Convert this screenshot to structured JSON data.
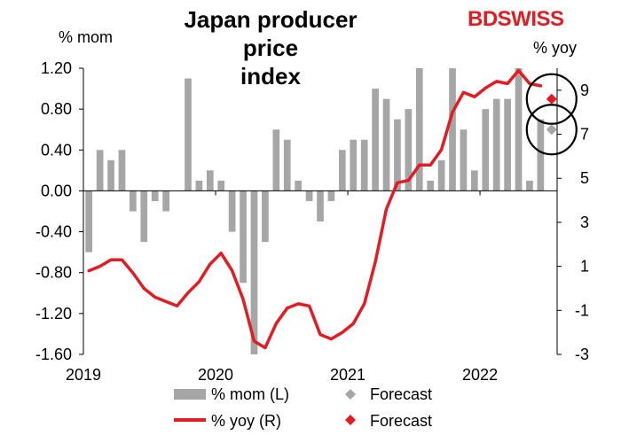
{
  "logo": {
    "text": "BDSWISS"
  },
  "chart_data": {
    "type": "bar",
    "title": "Japan producer price index",
    "title_line1": "Japan producer price",
    "title_line2": "index",
    "left_axis": {
      "label": "% mom",
      "ylim": [
        -1.6,
        1.2
      ],
      "ticks": [
        "1.20",
        "0.80",
        "0.40",
        "0.00",
        "-0.40",
        "-0.80",
        "-1.20",
        "-1.60"
      ]
    },
    "right_axis": {
      "label": "% yoy",
      "ylim": [
        -3,
        10
      ],
      "ticks": [
        "9",
        "7",
        "5",
        "3",
        "1",
        "-1",
        "-3"
      ]
    },
    "x_ticks": [
      "2019",
      "2020",
      "2021",
      "2022"
    ],
    "x_range": [
      "2019-01",
      "2022-08"
    ],
    "series": [
      {
        "name": "% mom (L)",
        "type": "bar",
        "axis": "left",
        "color": "#a6a6a6",
        "x": [
          "2019-01",
          "2019-02",
          "2019-03",
          "2019-04",
          "2019-05",
          "2019-06",
          "2019-07",
          "2019-08",
          "2019-09",
          "2019-10",
          "2019-11",
          "2019-12",
          "2020-01",
          "2020-02",
          "2020-03",
          "2020-04",
          "2020-05",
          "2020-06",
          "2020-07",
          "2020-08",
          "2020-09",
          "2020-10",
          "2020-11",
          "2020-12",
          "2021-01",
          "2021-02",
          "2021-03",
          "2021-04",
          "2021-05",
          "2021-06",
          "2021-07",
          "2021-08",
          "2021-09",
          "2021-10",
          "2021-11",
          "2021-12",
          "2022-01",
          "2022-02",
          "2022-03",
          "2022-04",
          "2022-05",
          "2022-06"
        ],
        "values": [
          -0.6,
          0.4,
          0.3,
          0.4,
          -0.2,
          -0.5,
          -0.1,
          -0.2,
          0.0,
          1.1,
          0.1,
          0.2,
          0.1,
          -0.4,
          -0.9,
          -1.6,
          -0.5,
          0.6,
          0.5,
          0.1,
          -0.1,
          -0.3,
          -0.1,
          0.4,
          0.5,
          0.5,
          1.0,
          0.9,
          0.7,
          0.8,
          1.2,
          0.1,
          0.3,
          1.2,
          0.6,
          0.2,
          0.8,
          0.9,
          0.9,
          1.2,
          0.1,
          0.7
        ]
      },
      {
        "name": "% yoy (R)",
        "type": "line",
        "axis": "right",
        "color": "#e31b23",
        "x": [
          "2019-01",
          "2019-02",
          "2019-03",
          "2019-04",
          "2019-05",
          "2019-06",
          "2019-07",
          "2019-08",
          "2019-09",
          "2019-10",
          "2019-11",
          "2019-12",
          "2020-01",
          "2020-02",
          "2020-03",
          "2020-04",
          "2020-05",
          "2020-06",
          "2020-07",
          "2020-08",
          "2020-09",
          "2020-10",
          "2020-11",
          "2020-12",
          "2021-01",
          "2021-02",
          "2021-03",
          "2021-04",
          "2021-05",
          "2021-06",
          "2021-07",
          "2021-08",
          "2021-09",
          "2021-10",
          "2021-11",
          "2021-12",
          "2022-01",
          "2022-02",
          "2022-03",
          "2022-04",
          "2022-05",
          "2022-06"
        ],
        "values": [
          0.8,
          1.0,
          1.3,
          1.3,
          0.7,
          0.0,
          -0.4,
          -0.6,
          -0.8,
          -0.2,
          0.3,
          1.1,
          1.6,
          0.8,
          -0.5,
          -2.4,
          -2.7,
          -1.6,
          -0.9,
          -0.7,
          -0.8,
          -2.1,
          -2.3,
          -2.0,
          -1.6,
          -0.7,
          1.2,
          3.6,
          4.8,
          4.9,
          5.6,
          5.6,
          6.3,
          8.0,
          8.9,
          8.7,
          9.1,
          9.4,
          9.3,
          9.9,
          9.3,
          9.2
        ]
      },
      {
        "name": "Forecast",
        "type": "marker",
        "axis": "left",
        "color": "#a6a6a6",
        "x": [
          "2022-07"
        ],
        "values": [
          0.6
        ]
      },
      {
        "name": "Forecast",
        "type": "marker",
        "axis": "right",
        "color": "#e31b23",
        "x": [
          "2022-07"
        ],
        "values": [
          8.6
        ]
      }
    ],
    "legend": {
      "placement": "bottom",
      "items": [
        "% mom (L)",
        "Forecast",
        "% yoy (R)",
        "Forecast"
      ]
    },
    "annotations": [
      "circle around yoy forecast",
      "circle around mom forecast"
    ],
    "grid": false
  }
}
